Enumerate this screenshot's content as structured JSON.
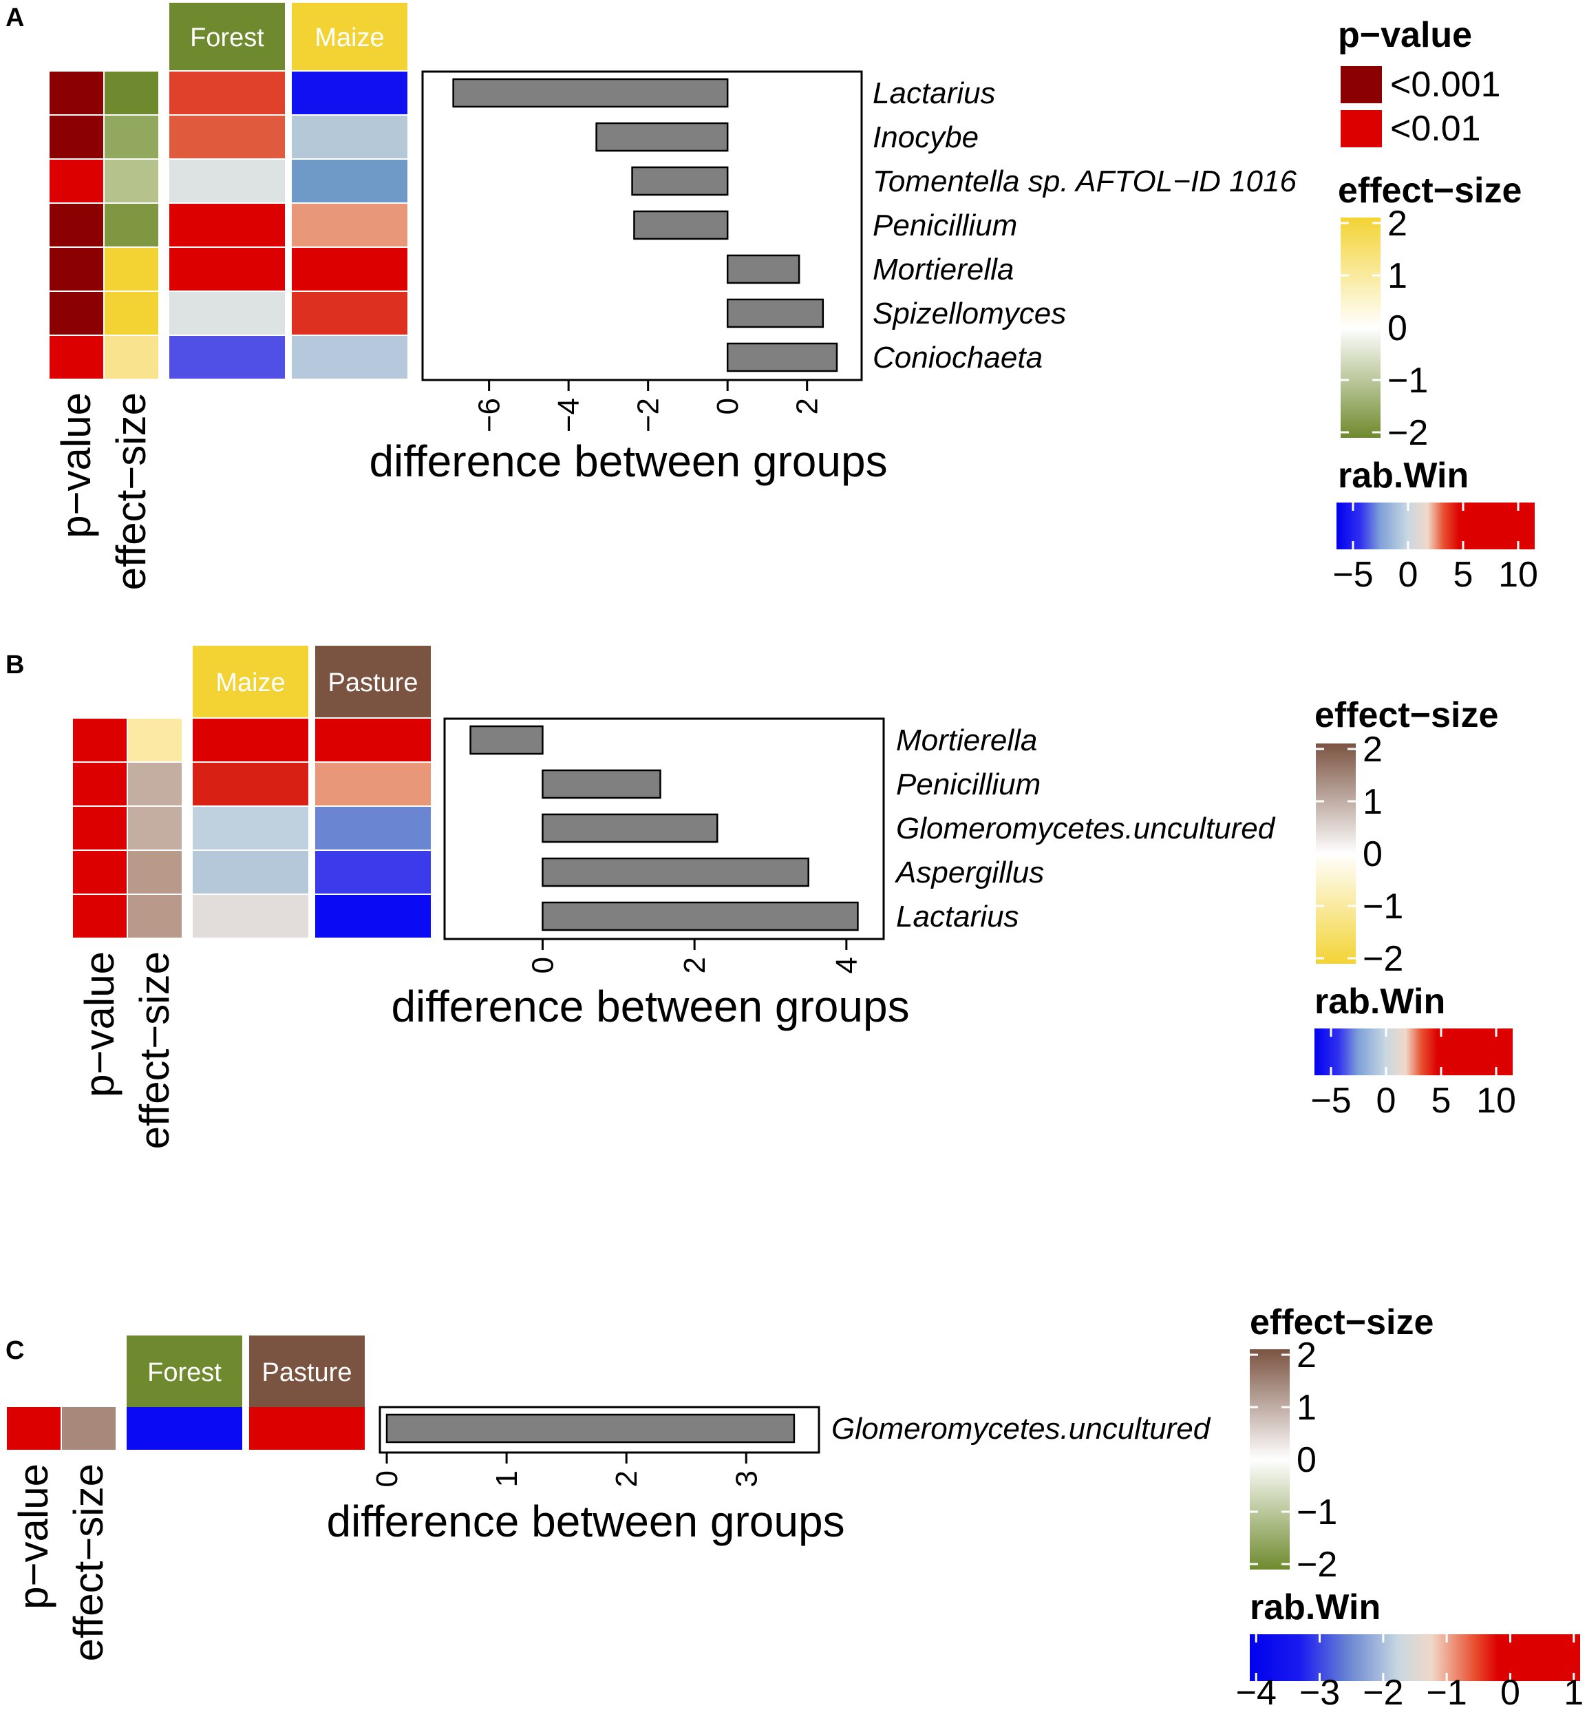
{
  "chart_data": [
    {
      "panel": "A",
      "type": "bar",
      "orientation": "horizontal",
      "groups": [
        {
          "label": "Forest",
          "color": "#6f8a2e"
        },
        {
          "label": "Maize",
          "color": "#f3d334"
        }
      ],
      "categories": [
        "Lactarius",
        "Inocybe",
        "Tomentella sp. AFTOL−ID 1016",
        "Penicillium",
        "Mortierella",
        "Spizellomyces",
        "Coniochaeta"
      ],
      "values": [
        -6.9,
        -3.3,
        -2.4,
        -2.35,
        1.8,
        2.4,
        2.75
      ],
      "row_colors": {
        "p_value": [
          "#8b0000",
          "#8b0000",
          "#dd0000",
          "#8b0000",
          "#8b0000",
          "#8b0000",
          "#dd0000"
        ],
        "effect_size": [
          "#6f8a2e",
          "#93a85f",
          "#b5c28c",
          "#7f9740",
          "#f3d334",
          "#f3d334",
          "#f9e38e"
        ],
        "rab_group1": [
          "#e0412a",
          "#e05a3e",
          "#dde3e2",
          "#dd0000",
          "#dd0000",
          "#dde3e2",
          "#5050e6"
        ],
        "rab_group2": [
          "#1010f0",
          "#b5c8d8",
          "#6f9ac8",
          "#e89878",
          "#dd0000",
          "#dd3020",
          "#b5c8dc"
        ]
      },
      "xlabel": "difference between groups",
      "ylabel": "",
      "row_labels": [
        "p−value",
        "effect−size"
      ],
      "xticks": [
        -6,
        -4,
        -2,
        0,
        2
      ],
      "xlim": [
        -7.5,
        3.2
      ],
      "legend_placement": "right",
      "legends": {
        "p_value": {
          "title": "p−value",
          "entries": [
            {
              "label": "<0.001",
              "color": "#8b0000"
            },
            {
              "label": "<0.01",
              "color": "#dd0000"
            }
          ]
        },
        "effect_size": {
          "title": "effect−size",
          "ticks": [
            "2",
            "1",
            "0",
            "−1",
            "−2"
          ],
          "low_color": "#6f8a2e",
          "high_color": "#f3d334"
        },
        "rab_win": {
          "title": "rab.Win",
          "ticks": [
            "−5",
            "0",
            "5",
            "10"
          ],
          "range": [
            -6.5,
            11.5
          ],
          "tick_values": [
            -5,
            0,
            5,
            10
          ]
        }
      }
    },
    {
      "panel": "B",
      "type": "bar",
      "orientation": "horizontal",
      "groups": [
        {
          "label": "Maize",
          "color": "#f3d334"
        },
        {
          "label": "Pasture",
          "color": "#7b5341"
        }
      ],
      "categories": [
        "Mortierella",
        "Penicillium",
        "Glomeromycetes.uncultured",
        "Aspergillus",
        "Lactarius"
      ],
      "values": [
        -0.95,
        1.55,
        2.3,
        3.5,
        4.15
      ],
      "row_colors": {
        "p_value": [
          "#dd0000",
          "#dd0000",
          "#dd0000",
          "#dd0000",
          "#dd0000"
        ],
        "effect_size": [
          "#fbe9a4",
          "#c4aea2",
          "#c4aea2",
          "#b8998a",
          "#b8998a"
        ],
        "rab_group1": [
          "#dd0000",
          "#d92014",
          "#bfd0df",
          "#b5c8da",
          "#e2dcda"
        ],
        "rab_group2": [
          "#dd0000",
          "#e89878",
          "#6a86d2",
          "#3b3bec",
          "#0a0af5"
        ]
      },
      "xlabel": "difference between groups",
      "ylabel": "",
      "row_labels": [
        "p−value",
        "effect−size"
      ],
      "xticks": [
        0,
        2,
        4
      ],
      "xlim": [
        -1.2,
        4.4
      ],
      "legend_placement": "right",
      "legends": {
        "effect_size": {
          "title": "effect−size",
          "ticks": [
            "2",
            "1",
            "0",
            "−1",
            "−2"
          ],
          "low_color": "#f3d334",
          "high_color": "#7b5341"
        },
        "rab_win": {
          "title": "rab.Win",
          "ticks": [
            "−5",
            "0",
            "5",
            "10"
          ],
          "range": [
            -6.5,
            11.5
          ],
          "tick_values": [
            -5,
            0,
            5,
            10
          ]
        }
      }
    },
    {
      "panel": "C",
      "type": "bar",
      "orientation": "horizontal",
      "groups": [
        {
          "label": "Forest",
          "color": "#6f8a2e"
        },
        {
          "label": "Pasture",
          "color": "#7b5341"
        }
      ],
      "categories": [
        "Glomeromycetes.uncultured"
      ],
      "values": [
        3.4
      ],
      "row_colors": {
        "p_value": [
          "#dd0000"
        ],
        "effect_size": [
          "#a8887a"
        ],
        "rab_group1": [
          "#0a0af5"
        ],
        "rab_group2": [
          "#dd0000"
        ]
      },
      "xlabel": "difference between groups",
      "ylabel": "",
      "row_labels": [
        "p−value",
        "effect−size"
      ],
      "xticks": [
        0,
        1,
        2,
        3
      ],
      "xlim": [
        0,
        3.55
      ],
      "legend_placement": "right",
      "legends": {
        "effect_size": {
          "title": "effect−size",
          "ticks": [
            "2",
            "1",
            "0",
            "−1",
            "−2"
          ],
          "low_color": "#6f8a2e",
          "high_color": "#7b5341"
        },
        "rab_win": {
          "title": "rab.Win",
          "ticks": [
            "−4",
            "−3",
            "−2",
            "−1",
            "0",
            "1"
          ],
          "range": [
            -4.1,
            1.1
          ],
          "tick_values": [
            -4,
            -3,
            -2,
            -1,
            0,
            1
          ]
        }
      }
    }
  ]
}
